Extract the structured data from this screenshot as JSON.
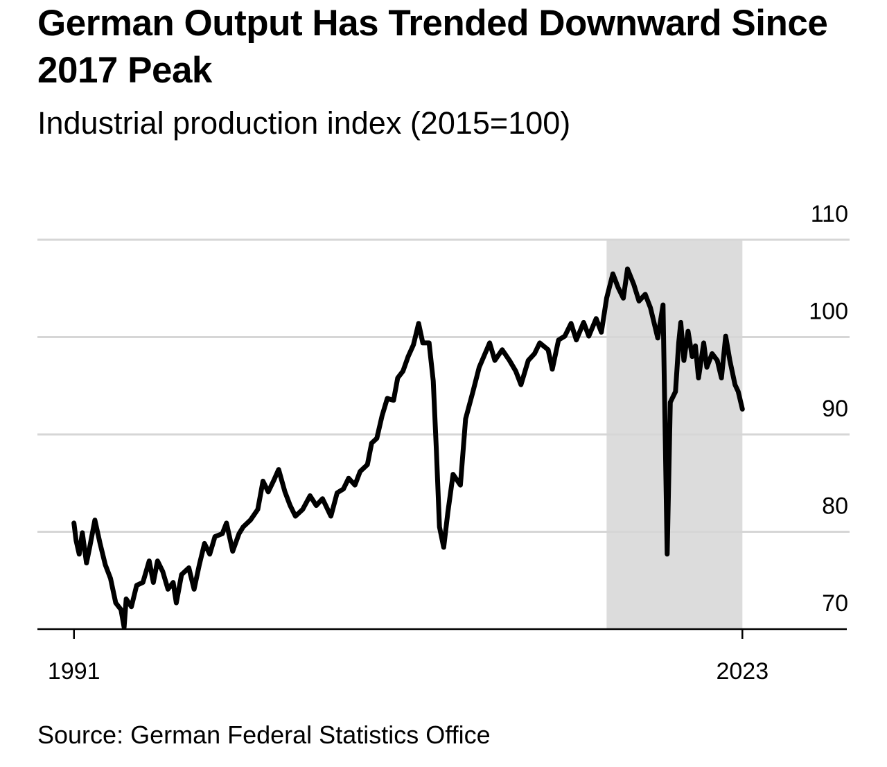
{
  "chart_data": {
    "type": "line",
    "title": "German Output Has Trended Downward Since 2017 Peak",
    "subtitle": "Industrial production index (2015=100)",
    "source": "Source: German Federal Statistics Office",
    "color": "#000000",
    "shade": [
      2016.5,
      2023
    ],
    "shade_color": "#dcdcdc",
    "grid": true,
    "xlim": [
      1989.25,
      2028
    ],
    "xticks": [
      1991,
      2023
    ],
    "ylim": [
      70,
      110
    ],
    "yticks": [
      70,
      80,
      90,
      100,
      110
    ],
    "x": [
      1991.0,
      1991.1,
      1991.25,
      1991.4,
      1991.6,
      1991.75,
      1992.0,
      1992.25,
      1992.5,
      1992.75,
      1993.0,
      1993.25,
      1993.4,
      1993.5,
      1993.75,
      1994.0,
      1994.3,
      1994.6,
      1994.8,
      1995.0,
      1995.25,
      1995.5,
      1995.75,
      1995.9,
      1996.15,
      1996.5,
      1996.75,
      1997.0,
      1997.25,
      1997.5,
      1997.75,
      1998.1,
      1998.3,
      1998.6,
      1998.9,
      1999.1,
      1999.45,
      1999.8,
      2000.05,
      2000.3,
      2000.55,
      2000.8,
      2001.1,
      2001.35,
      2001.6,
      2001.95,
      2002.3,
      2002.6,
      2002.9,
      2003.3,
      2003.6,
      2003.9,
      2004.15,
      2004.45,
      2004.7,
      2005.05,
      2005.25,
      2005.5,
      2005.75,
      2006.0,
      2006.3,
      2006.5,
      2006.75,
      2007.0,
      2007.25,
      2007.5,
      2007.7,
      2008.0,
      2008.2,
      2008.35,
      2008.5,
      2008.7,
      2008.9,
      2009.15,
      2009.5,
      2009.75,
      2010.1,
      2010.4,
      2010.9,
      2011.15,
      2011.5,
      2011.85,
      2012.15,
      2012.4,
      2012.75,
      2013.05,
      2013.3,
      2013.7,
      2013.9,
      2014.2,
      2014.5,
      2014.8,
      2015.05,
      2015.4,
      2015.65,
      2016.0,
      2016.25,
      2016.5,
      2016.8,
      2017.05,
      2017.3,
      2017.5,
      2017.8,
      2018.05,
      2018.35,
      2018.6,
      2018.95,
      2019.2,
      2019.4,
      2019.55,
      2019.8,
      2019.95,
      2020.05,
      2020.2,
      2020.4,
      2020.6,
      2020.75,
      2020.9,
      2021.15,
      2021.3,
      2021.55,
      2021.8,
      2022.0,
      2022.2,
      2022.4,
      2022.65,
      2022.8,
      2023.0
    ],
    "values": [
      80.9,
      79.1,
      77.7,
      79.9,
      76.8,
      78.4,
      81.2,
      78.8,
      76.6,
      75.2,
      72.7,
      72.0,
      70.2,
      73.1,
      72.3,
      74.5,
      74.8,
      77.0,
      74.8,
      77.0,
      75.9,
      74.1,
      74.8,
      72.7,
      75.6,
      76.3,
      74.1,
      76.6,
      78.8,
      77.7,
      79.5,
      79.8,
      80.9,
      78.0,
      79.8,
      80.5,
      81.2,
      82.3,
      85.2,
      84.1,
      85.2,
      86.4,
      84.1,
      82.7,
      81.6,
      82.3,
      83.7,
      82.7,
      83.4,
      81.6,
      84.0,
      84.4,
      85.5,
      84.8,
      86.2,
      86.9,
      89.1,
      89.6,
      91.9,
      93.7,
      93.5,
      95.8,
      96.5,
      98.0,
      99.2,
      101.4,
      99.4,
      99.4,
      95.5,
      88.4,
      80.5,
      78.4,
      82.0,
      85.9,
      84.8,
      91.6,
      94.4,
      96.9,
      99.4,
      97.6,
      98.7,
      97.6,
      96.5,
      95.1,
      97.6,
      98.3,
      99.4,
      98.7,
      96.7,
      99.7,
      100.1,
      101.4,
      99.7,
      101.5,
      100.1,
      101.9,
      100.5,
      104.0,
      106.5,
      105.1,
      104.0,
      107.0,
      105.4,
      103.7,
      104.4,
      103.0,
      99.9,
      103.3,
      77.7,
      93.3,
      94.4,
      99.4,
      101.5,
      97.6,
      100.6,
      98.0,
      99.1,
      95.8,
      99.4,
      96.9,
      98.3,
      97.6,
      95.8,
      100.1,
      97.6,
      95.1,
      94.4,
      92.6
    ]
  }
}
